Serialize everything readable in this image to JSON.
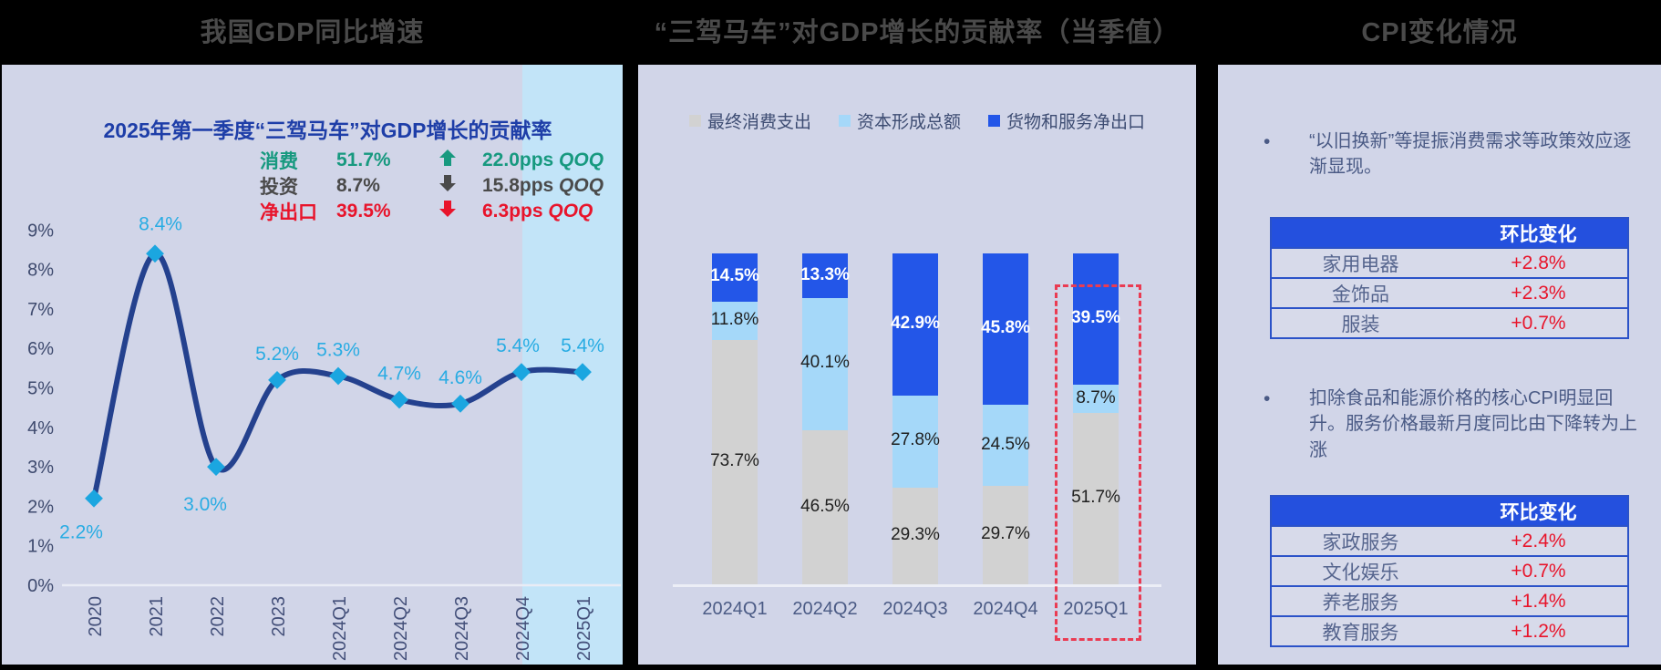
{
  "titles": {
    "gdp": "我国GDP同比增速",
    "troika": "“三驾马车”对GDP增长的贡献率（当季值）",
    "cpi": "CPI变化情况"
  },
  "gdp_panel": {
    "inset_title": "2025年第一季度“三驾马车”对GDP增长的贡献率",
    "legend_rows": [
      {
        "name": "消费",
        "value": "51.7%",
        "direction": "up",
        "delta": "22.0pps",
        "suffix": "QOQ",
        "color": "#17997F"
      },
      {
        "name": "投资",
        "value": "8.7%",
        "direction": "down",
        "delta": "15.8pps",
        "suffix": "QOQ",
        "color": "#4A4A4A"
      },
      {
        "name": "净出口",
        "value": "39.5%",
        "direction": "down",
        "delta": "6.3pps",
        "suffix": "QOQ",
        "color": "#E8142B"
      }
    ]
  },
  "cpi_panel": {
    "bullet1": "“以旧换新”等提振消费需求等政策效应逐渐显现。",
    "bullet2": "扣除食品和能源价格的核心CPI明显回升。服务价格最新月度同比由下降转为上涨",
    "table1": {
      "header": "环比变化",
      "rows": [
        {
          "label": "家用电器",
          "value": "+2.8%"
        },
        {
          "label": "金饰品",
          "value": "+2.3%"
        },
        {
          "label": "服装",
          "value": "+0.7%"
        }
      ]
    },
    "table2": {
      "header": "环比变化",
      "rows": [
        {
          "label": "家政服务",
          "value": "+2.4%"
        },
        {
          "label": "文化娱乐",
          "value": "+0.7%"
        },
        {
          "label": "养老服务",
          "value": "+1.4%"
        },
        {
          "label": "教育服务",
          "value": "+1.2%"
        }
      ]
    }
  },
  "chart_data": [
    {
      "type": "line",
      "title": "我国GDP同比增速",
      "x": [
        "2020",
        "2021",
        "2022",
        "2023",
        "2024Q1",
        "2024Q2",
        "2024Q3",
        "2024Q4",
        "2025Q1"
      ],
      "values": [
        2.2,
        8.4,
        3.0,
        5.2,
        5.3,
        4.7,
        4.6,
        5.4,
        5.4
      ],
      "unit": "%",
      "ylim": [
        0,
        9
      ],
      "ytick_step": 1,
      "grid": false,
      "line_color": "#24418E",
      "marker": "diamond",
      "marker_color": "#1BA6E0",
      "label_color": "#29ACE3",
      "highlight_x": "2025Q1",
      "highlight_color": "#C2E4F8"
    },
    {
      "type": "stacked-bar",
      "title": "“三驾马车”对GDP增长的贡献率（当季值）",
      "categories": [
        "2024Q1",
        "2024Q2",
        "2024Q3",
        "2024Q4",
        "2025Q1"
      ],
      "series": [
        {
          "name": "最终消费支出",
          "color": "#D2D2D2",
          "label_color": "#1F1F1F",
          "values": [
            73.7,
            46.5,
            29.3,
            29.7,
            51.7
          ]
        },
        {
          "name": "资本形成总额",
          "color": "#A5D8F9",
          "label_color": "#1F1F1F",
          "values": [
            11.8,
            40.1,
            27.8,
            24.5,
            8.7
          ]
        },
        {
          "name": "货物和服务净出口",
          "color": "#2356E8",
          "label_color": "#FFFFFF",
          "values": [
            14.5,
            13.3,
            42.9,
            45.8,
            39.5
          ]
        }
      ],
      "unit": "%",
      "ylim": [
        0,
        100
      ],
      "legend_position": "top",
      "highlight_category": "2025Q1"
    }
  ]
}
